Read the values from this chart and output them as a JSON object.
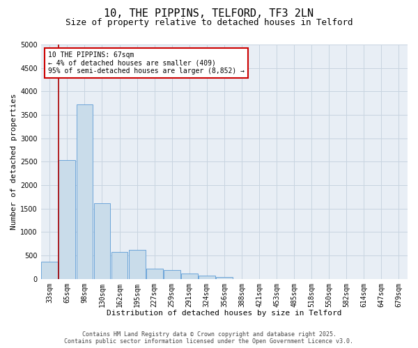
{
  "title": "10, THE PIPPINS, TELFORD, TF3 2LN",
  "subtitle": "Size of property relative to detached houses in Telford",
  "xlabel": "Distribution of detached houses by size in Telford",
  "ylabel": "Number of detached properties",
  "bar_color": "#c9dcea",
  "bar_edge_color": "#5b9bd5",
  "background_color": "#ffffff",
  "plot_bg_color": "#e8eef5",
  "grid_color": "#c8d4e0",
  "categories": [
    "33sqm",
    "65sqm",
    "98sqm",
    "130sqm",
    "162sqm",
    "195sqm",
    "227sqm",
    "259sqm",
    "291sqm",
    "324sqm",
    "356sqm",
    "388sqm",
    "421sqm",
    "453sqm",
    "485sqm",
    "518sqm",
    "550sqm",
    "582sqm",
    "614sqm",
    "647sqm",
    "679sqm"
  ],
  "values": [
    370,
    2530,
    3730,
    1610,
    580,
    620,
    220,
    190,
    110,
    70,
    45,
    0,
    0,
    0,
    0,
    0,
    0,
    0,
    0,
    0,
    0
  ],
  "ylim": [
    0,
    5000
  ],
  "yticks": [
    0,
    500,
    1000,
    1500,
    2000,
    2500,
    3000,
    3500,
    4000,
    4500,
    5000
  ],
  "vline_x_index": 0.5,
  "annotation_line1": "10 THE PIPPINS: 67sqm",
  "annotation_line2": "← 4% of detached houses are smaller (409)",
  "annotation_line3": "95% of semi-detached houses are larger (8,852) →",
  "annotation_box_color": "#cc0000",
  "vline_color": "#aa0000",
  "footer_line1": "Contains HM Land Registry data © Crown copyright and database right 2025.",
  "footer_line2": "Contains public sector information licensed under the Open Government Licence v3.0.",
  "title_fontsize": 11,
  "subtitle_fontsize": 9,
  "tick_fontsize": 7,
  "xlabel_fontsize": 8,
  "ylabel_fontsize": 8,
  "footer_fontsize": 6
}
